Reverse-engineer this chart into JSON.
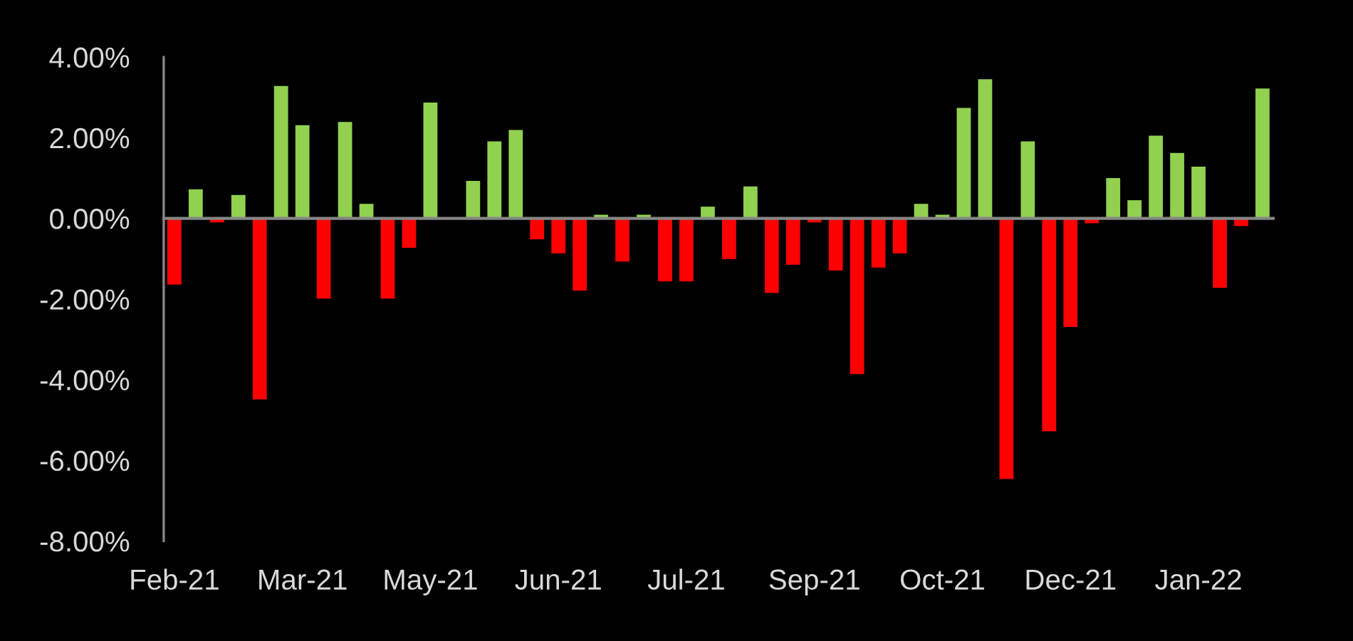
{
  "chart_data": {
    "type": "bar",
    "categories": [
      "Feb-21",
      null,
      null,
      null,
      null,
      null,
      "Mar-21",
      null,
      null,
      null,
      null,
      null,
      "May-21",
      null,
      null,
      null,
      null,
      null,
      "Jun-21",
      null,
      null,
      null,
      null,
      null,
      "Jul-21",
      null,
      null,
      null,
      null,
      null,
      "Sep-21",
      null,
      null,
      null,
      null,
      null,
      "Oct-21",
      null,
      null,
      null,
      null,
      null,
      "Dec-21",
      null,
      null,
      null,
      null,
      null,
      "Jan-22",
      null,
      null,
      null
    ],
    "values": [
      -1.64,
      0.72,
      -0.1,
      0.58,
      -4.49,
      3.28,
      2.31,
      -1.99,
      2.39,
      0.36,
      -1.99,
      -0.73,
      2.87,
      null,
      0.93,
      1.91,
      2.19,
      -0.52,
      -0.87,
      -1.79,
      0.09,
      -1.07,
      0.09,
      -1.56,
      -1.56,
      0.29,
      -1.01,
      0.79,
      -1.85,
      -1.15,
      -0.1,
      -1.29,
      -3.86,
      -1.22,
      -0.87,
      0.36,
      0.09,
      2.74,
      3.45,
      -6.46,
      1.91,
      -5.28,
      -2.69,
      -0.12,
      1.0,
      0.45,
      2.05,
      1.62,
      1.28,
      -1.72,
      -0.19,
      3.22
    ],
    "colors": [
      "#ff0000",
      "#92d050",
      "#ff0000",
      "#92d050",
      "#ff0000",
      "#92d050",
      "#92d050",
      "#ff0000",
      "#92d050",
      "#92d050",
      "#ff0000",
      "#ff0000",
      "#92d050",
      null,
      "#92d050",
      "#92d050",
      "#92d050",
      "#ff0000",
      "#ff0000",
      "#ff0000",
      "#92d050",
      "#ff0000",
      "#92d050",
      "#ff0000",
      "#ff0000",
      "#92d050",
      "#ff0000",
      "#92d050",
      "#ff0000",
      "#ff0000",
      "#ff0000",
      "#ff0000",
      "#ff0000",
      "#ff0000",
      "#ff0000",
      "#92d050",
      "#92d050",
      "#92d050",
      "#92d050",
      "#ff0000",
      "#92d050",
      "#ff0000",
      "#ff0000",
      "#ff0000",
      "#92d050",
      "#92d050",
      "#92d050",
      "#92d050",
      "#92d050",
      "#ff0000",
      "#ff0000",
      "#92d050"
    ],
    "ylim": [
      -8,
      4
    ],
    "yticks": [
      {
        "value": 4,
        "label": "4.00%"
      },
      {
        "value": 2,
        "label": "2.00%"
      },
      {
        "value": 0,
        "label": "0.00%"
      },
      {
        "value": -2,
        "label": "-2.00%"
      },
      {
        "value": -4,
        "label": "-4.00%"
      },
      {
        "value": -6,
        "label": "-6.00%"
      },
      {
        "value": -8,
        "label": "-8.00%"
      }
    ]
  }
}
